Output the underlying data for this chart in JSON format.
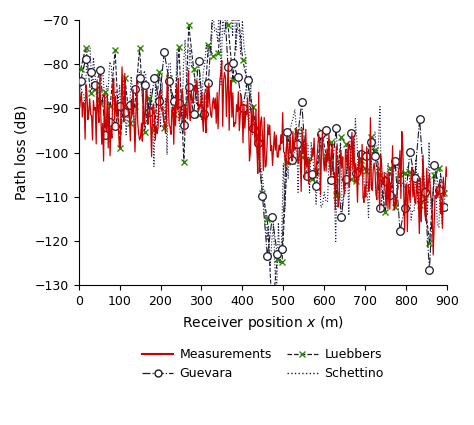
{
  "xlim": [
    0,
    900
  ],
  "ylim": [
    -130,
    -70
  ],
  "ylabel": "Path loss (dB)",
  "yticks": [
    -130,
    -120,
    -110,
    -100,
    -90,
    -80,
    -70
  ],
  "xticks": [
    0,
    100,
    200,
    300,
    400,
    500,
    600,
    700,
    800,
    900
  ],
  "meas_color": "#cc0000",
  "guev_color": "#1a1a2e",
  "luebb_color": "#2d8a00",
  "schet_color": "#1a1a4e",
  "bg_color": "#ffffff",
  "legend_meas": "Measurements",
  "legend_guev": "Guevara",
  "legend_luebb": "Luebbers",
  "legend_schet": "Schettino",
  "fontsize": 10
}
